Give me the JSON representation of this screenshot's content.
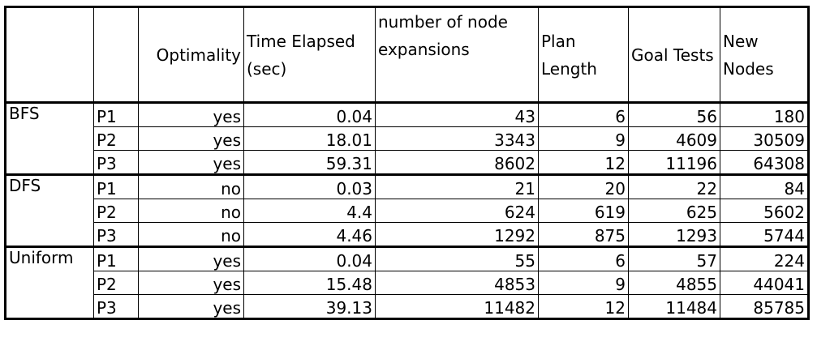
{
  "headers": {
    "algo": "",
    "problem": "",
    "optimality": "Optimality",
    "time": "Time Elapsed (sec)",
    "expansions": "number of node expansions",
    "plan_length": "Plan Length",
    "goal_tests": "Goal Tests",
    "new_nodes": "New Nodes"
  },
  "rows": [
    {
      "algo": "BFS",
      "problem": "P1",
      "optimality": "yes",
      "time": "0.04",
      "expansions": "43",
      "plan_length": "6",
      "goal_tests": "56",
      "new_nodes": "180"
    },
    {
      "algo": "",
      "problem": "P2",
      "optimality": "yes",
      "time": "18.01",
      "expansions": "3343",
      "plan_length": "9",
      "goal_tests": "4609",
      "new_nodes": "30509"
    },
    {
      "algo": "",
      "problem": "P3",
      "optimality": "yes",
      "time": "59.31",
      "expansions": "8602",
      "plan_length": "12",
      "goal_tests": "11196",
      "new_nodes": "64308"
    },
    {
      "algo": "DFS",
      "problem": "P1",
      "optimality": "no",
      "time": "0.03",
      "expansions": "21",
      "plan_length": "20",
      "goal_tests": "22",
      "new_nodes": "84"
    },
    {
      "algo": "",
      "problem": "P2",
      "optimality": "no",
      "time": "4.4",
      "expansions": "624",
      "plan_length": "619",
      "goal_tests": "625",
      "new_nodes": "5602"
    },
    {
      "algo": "",
      "problem": "P3",
      "optimality": "no",
      "time": "4.46",
      "expansions": "1292",
      "plan_length": "875",
      "goal_tests": "1293",
      "new_nodes": "5744"
    },
    {
      "algo": "Uniform",
      "problem": "P1",
      "optimality": "yes",
      "time": "0.04",
      "expansions": "55",
      "plan_length": "6",
      "goal_tests": "57",
      "new_nodes": "224"
    },
    {
      "algo": "",
      "problem": "P2",
      "optimality": "yes",
      "time": "15.48",
      "expansions": "4853",
      "plan_length": "9",
      "goal_tests": "4855",
      "new_nodes": "44041"
    },
    {
      "algo": "",
      "problem": "P3",
      "optimality": "yes",
      "time": "39.13",
      "expansions": "11482",
      "plan_length": "12",
      "goal_tests": "11484",
      "new_nodes": "85785"
    }
  ]
}
